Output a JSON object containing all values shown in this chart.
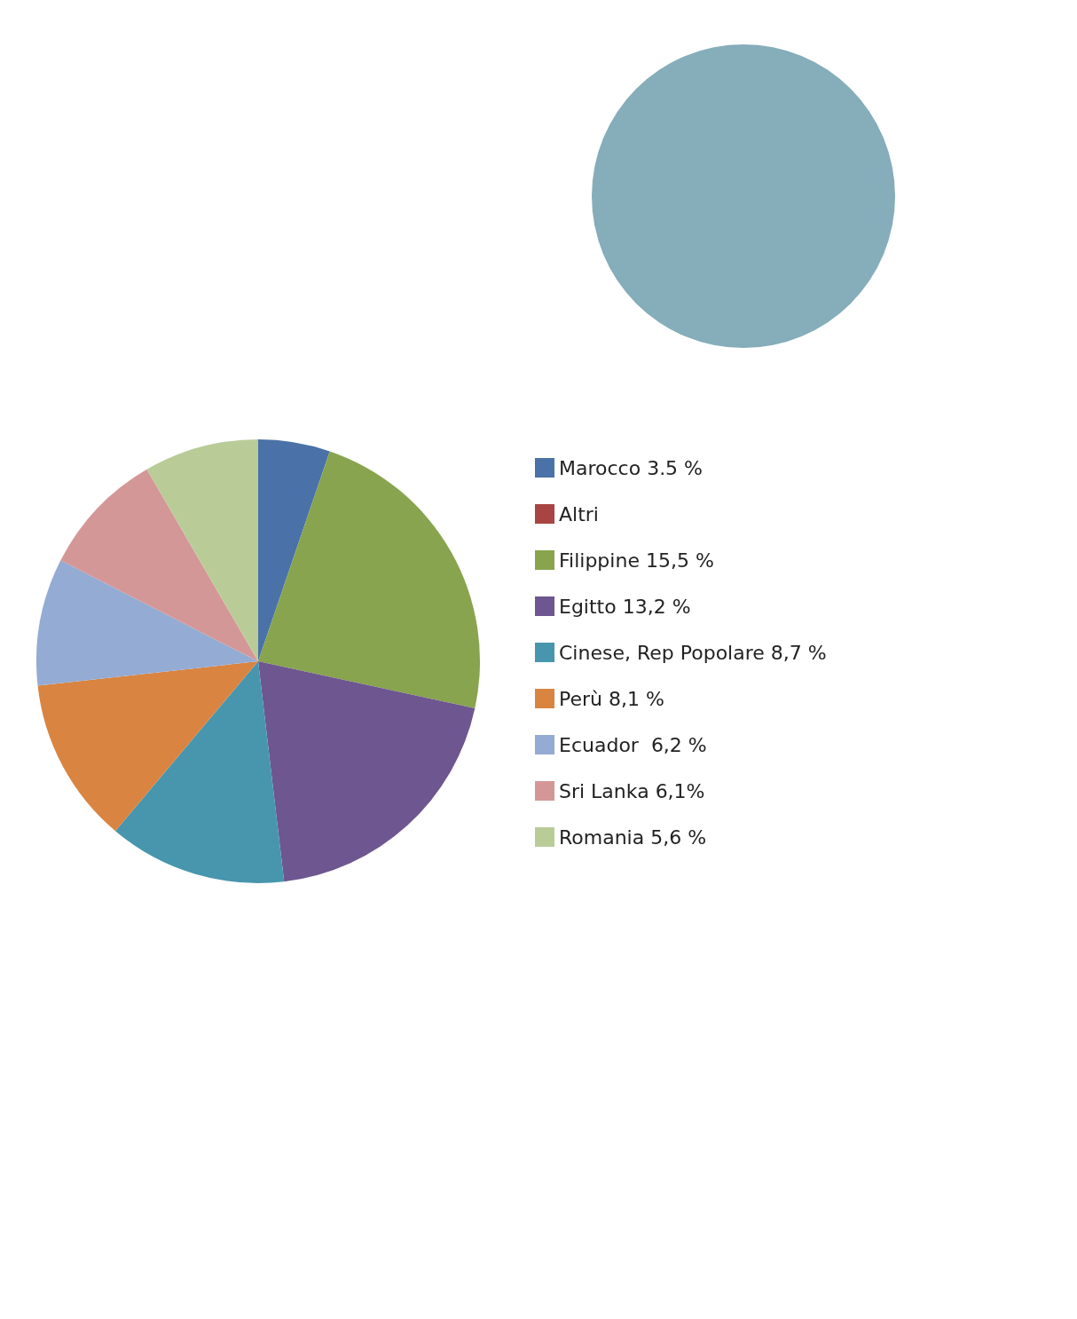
{
  "chart_data": {
    "type": "pie",
    "categories": [
      "Marocco 3.5 %",
      "Altri",
      "Filippine 15,5 %",
      "Egitto 13,2 %",
      "Cinese, Rep Popolare 8,7 %",
      "Perù 8,1 %",
      "Ecuador  6,2 %",
      "Sri Lanka 6,1%",
      "Romania 5,6 %"
    ],
    "values": [
      3.5,
      0,
      15.5,
      13.2,
      8.7,
      8.1,
      6.2,
      6.1,
      5.6
    ],
    "colors": [
      "#4a72a8",
      "#a84442",
      "#88a44e",
      "#6e5690",
      "#4796ad",
      "#d98441",
      "#94abd4",
      "#d49797",
      "#b9cc98"
    ],
    "legend": "right"
  }
}
